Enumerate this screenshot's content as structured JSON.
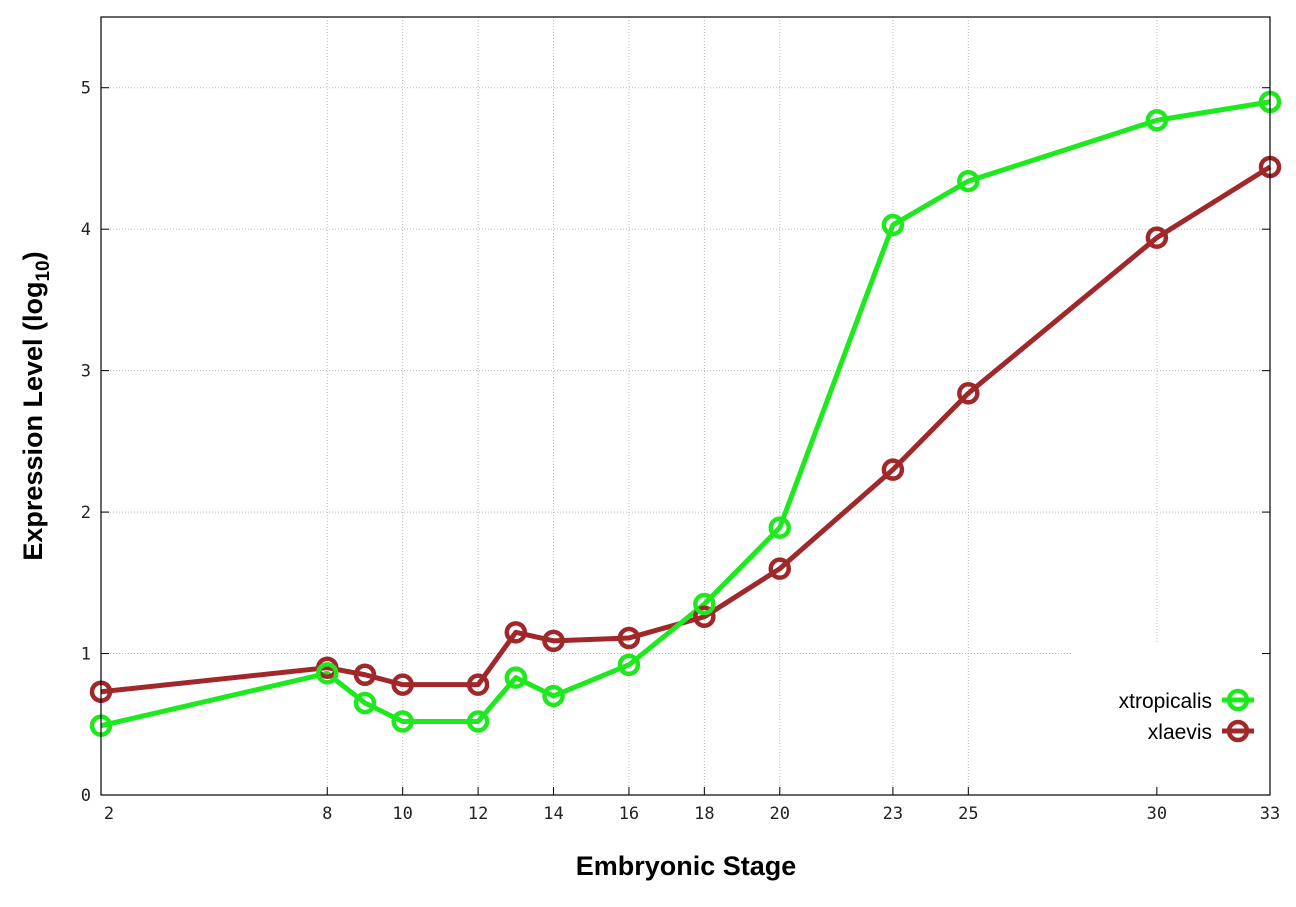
{
  "chart_data": {
    "type": "line",
    "title": "",
    "xlabel": "Embryonic Stage",
    "ylabel": "Expression Level (log10)",
    "ylabel_main": "Expression Level (log",
    "ylabel_sub": "10",
    "ylabel_close": ")",
    "xlim": [
      2,
      33
    ],
    "ylim": [
      0,
      5.5
    ],
    "x_ticks": [
      2,
      8,
      10,
      12,
      14,
      16,
      18,
      20,
      23,
      25,
      30,
      33
    ],
    "y_ticks": [
      0,
      1,
      2,
      3,
      4,
      5
    ],
    "grid": true,
    "legend_position": "bottom-right",
    "x": [
      2,
      8,
      9,
      10,
      12,
      13,
      14,
      16,
      18,
      20,
      23,
      25,
      30,
      33
    ],
    "series": [
      {
        "name": "xtropicalis",
        "color": "#1ee81e",
        "values": [
          0.49,
          0.86,
          0.65,
          0.52,
          0.52,
          0.83,
          0.7,
          0.92,
          1.35,
          1.89,
          4.03,
          4.34,
          4.77,
          4.9
        ]
      },
      {
        "name": "xlaevis",
        "color": "#a0282a",
        "values": [
          0.73,
          0.9,
          0.85,
          0.78,
          0.78,
          1.15,
          1.09,
          1.11,
          1.26,
          1.6,
          2.3,
          2.84,
          3.94,
          4.44
        ]
      }
    ]
  }
}
